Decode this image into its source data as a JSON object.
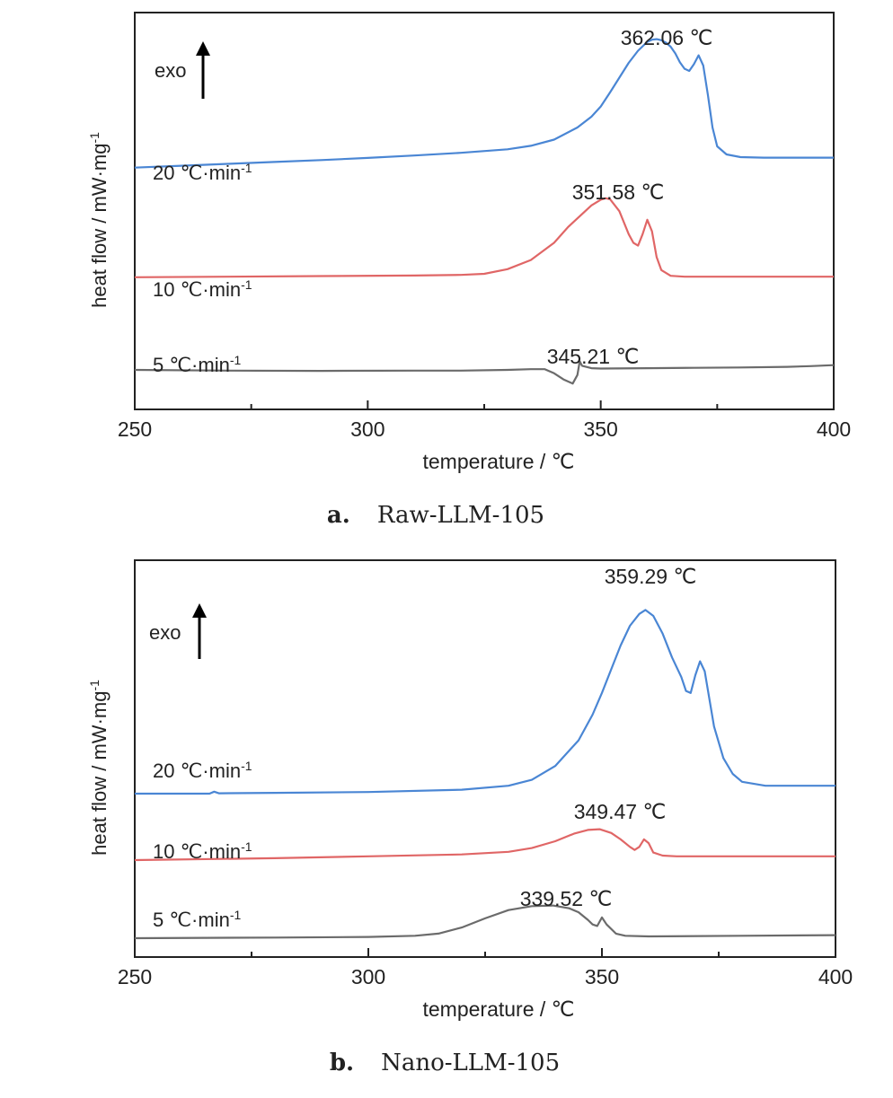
{
  "chart_data": [
    {
      "type": "line",
      "xlabel": "temperature / ℃",
      "ylabel": "heat flow / mW·mg",
      "ylabel_sup": "-1",
      "xlim": [
        250,
        400
      ],
      "xticks": [
        250,
        300,
        350,
        400
      ],
      "exo_label": "exo",
      "caption_letter": "a.",
      "caption_name": "Raw-LLM-105",
      "series": [
        {
          "name": "20 ℃·min",
          "name_sup": "-1",
          "color": "#4a86d4",
          "peak_label": "362.06 ℃",
          "x": [
            250,
            260,
            270,
            280,
            290,
            300,
            310,
            320,
            330,
            335,
            340,
            345,
            348,
            350,
            352,
            354,
            356,
            358,
            360,
            361,
            362,
            363,
            364,
            365,
            366,
            367,
            368,
            369,
            370,
            371,
            372,
            373,
            374,
            375,
            377,
            380,
            385,
            390,
            400
          ],
          "y": [
            0.11,
            0.18,
            0.25,
            0.32,
            0.39,
            0.47,
            0.56,
            0.66,
            0.79,
            0.92,
            1.15,
            1.6,
            2.0,
            2.38,
            2.9,
            3.45,
            4.0,
            4.45,
            4.78,
            4.86,
            4.88,
            4.84,
            4.75,
            4.6,
            4.35,
            4.02,
            3.78,
            3.7,
            3.95,
            4.28,
            3.9,
            2.8,
            1.6,
            0.9,
            0.6,
            0.5,
            0.48,
            0.48,
            0.48
          ]
        },
        {
          "name": "10 ℃·min",
          "name_sup": "-1",
          "color": "#e06666",
          "peak_label": "351.58 ℃",
          "x": [
            250,
            270,
            290,
            310,
            320,
            325,
            330,
            335,
            340,
            343,
            346,
            348,
            350,
            351,
            352,
            354,
            356,
            357,
            358,
            359,
            360,
            361,
            362,
            363,
            365,
            368,
            375,
            400
          ],
          "y": [
            0.1,
            0.12,
            0.14,
            0.16,
            0.18,
            0.22,
            0.38,
            0.7,
            1.3,
            1.85,
            2.3,
            2.6,
            2.8,
            2.85,
            2.82,
            2.4,
            1.6,
            1.3,
            1.2,
            1.6,
            2.1,
            1.7,
            0.8,
            0.35,
            0.15,
            0.12,
            0.12,
            0.12
          ]
        },
        {
          "name": "5 ℃·min",
          "name_sup": "-1",
          "color": "#6b6b6b",
          "peak_label": "345.21 ℃",
          "x": [
            250,
            270,
            290,
            310,
            320,
            330,
            335,
            338,
            340,
            342,
            344,
            345,
            345.5,
            346,
            348,
            350,
            360,
            370,
            380,
            390,
            395,
            400
          ],
          "y": [
            0.0,
            -0.02,
            -0.03,
            -0.02,
            -0.02,
            -0.0,
            0.02,
            0.02,
            -0.1,
            -0.28,
            -0.4,
            -0.15,
            0.25,
            0.12,
            0.05,
            0.04,
            0.05,
            0.06,
            0.07,
            0.09,
            0.11,
            0.14
          ]
        }
      ]
    },
    {
      "type": "line",
      "xlabel": "temperature / ℃",
      "ylabel": "heat flow / mW·mg",
      "ylabel_sup": "-1",
      "xlim": [
        250,
        400
      ],
      "xticks": [
        250,
        300,
        350,
        400
      ],
      "exo_label": "exo",
      "caption_letter": "b.",
      "caption_name": "Nano-LLM-105",
      "series": [
        {
          "name": "20 ℃·min",
          "name_sup": "-1",
          "color": "#4a86d4",
          "peak_label": "359.29 ℃",
          "x": [
            250,
            266,
            267,
            268,
            280,
            300,
            320,
            330,
            335,
            340,
            345,
            348,
            350,
            352,
            354,
            356,
            358,
            359.3,
            361,
            363,
            365,
            367,
            368,
            369,
            370,
            371,
            372,
            373,
            374,
            376,
            378,
            380,
            385,
            400
          ],
          "y": [
            0.0,
            0.0,
            0.05,
            0.01,
            0.02,
            0.04,
            0.1,
            0.2,
            0.35,
            0.7,
            1.35,
            2.0,
            2.55,
            3.15,
            3.75,
            4.25,
            4.55,
            4.65,
            4.5,
            4.05,
            3.45,
            2.95,
            2.6,
            2.55,
            3.0,
            3.35,
            3.1,
            2.4,
            1.7,
            0.9,
            0.5,
            0.3,
            0.2,
            0.2
          ]
        },
        {
          "name": "10 ℃·min",
          "name_sup": "-1",
          "color": "#e06666",
          "peak_label": "349.47 ℃",
          "x": [
            250,
            280,
            300,
            320,
            330,
            335,
            340,
            344,
            347,
            349.5,
            352,
            354,
            356,
            357,
            358,
            359,
            360,
            361,
            363,
            366,
            370,
            400
          ],
          "y": [
            0.0,
            0.05,
            0.1,
            0.15,
            0.22,
            0.32,
            0.5,
            0.7,
            0.8,
            0.82,
            0.72,
            0.55,
            0.35,
            0.27,
            0.35,
            0.55,
            0.45,
            0.2,
            0.12,
            0.1,
            0.1,
            0.1
          ]
        },
        {
          "name": "5 ℃·min",
          "name_sup": "-1",
          "color": "#6b6b6b",
          "peak_label": "339.52 ℃",
          "x": [
            250,
            280,
            300,
            310,
            315,
            320,
            325,
            330,
            335,
            339.5,
            343,
            345,
            347,
            348,
            349,
            350,
            351,
            353,
            355,
            360,
            380,
            400
          ],
          "y": [
            0.0,
            0.02,
            0.04,
            0.08,
            0.15,
            0.35,
            0.65,
            0.92,
            1.05,
            1.07,
            0.98,
            0.85,
            0.6,
            0.45,
            0.4,
            0.68,
            0.45,
            0.15,
            0.08,
            0.06,
            0.08,
            0.1
          ]
        }
      ]
    }
  ]
}
